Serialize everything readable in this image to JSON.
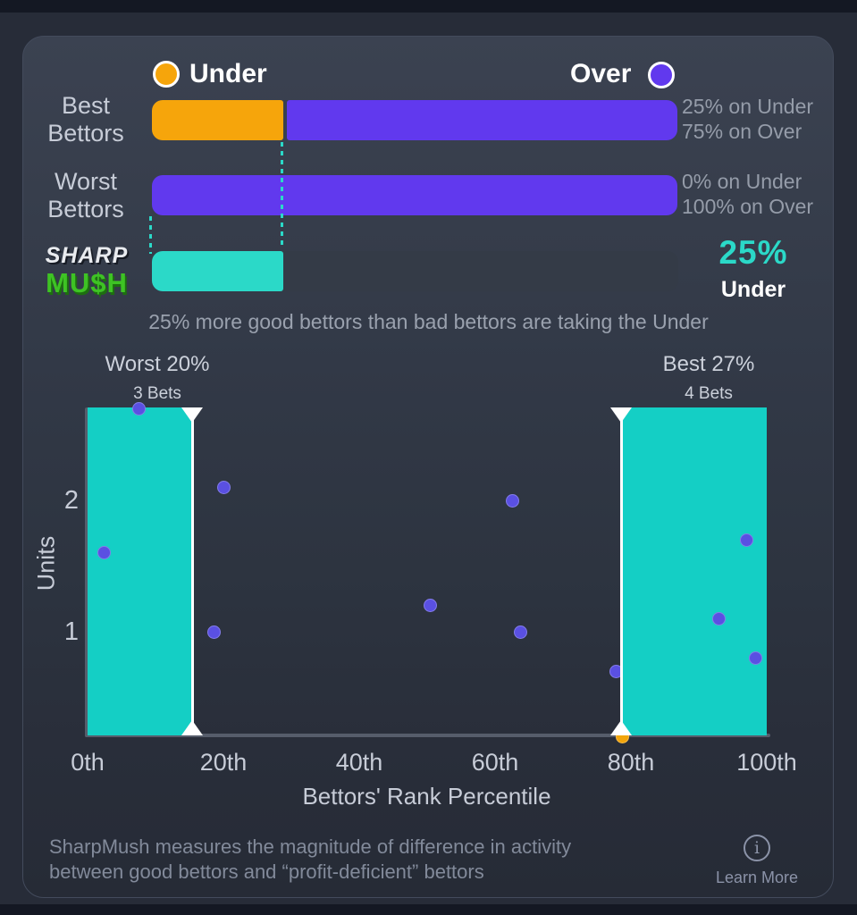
{
  "legend": {
    "under_label": "Under",
    "over_label": "Over"
  },
  "colors": {
    "under": "#f6a50b",
    "over": "#6139ee",
    "teal": "#2bd9c8",
    "band_teal": "#14cfc5",
    "dot_over": "#5a50e2",
    "dot_under": "#f2a50c"
  },
  "bar_rows": [
    {
      "label_line1": "Best",
      "label_line2": "Bettors",
      "under_pct": 25,
      "over_pct": 75,
      "side_line1": "25% on Under",
      "side_line2": "75% on Over"
    },
    {
      "label_line1": "Worst",
      "label_line2": "Bettors",
      "under_pct": 0,
      "over_pct": 100,
      "side_line1": "0% on Under",
      "side_line2": "100% on Over"
    }
  ],
  "mush_row": {
    "logo_line1": "SHARP",
    "logo_line2": "MU$H",
    "pct": 25,
    "value": "25%",
    "value_sub": "Under"
  },
  "caption": "25% more good bettors than bad bettors are taking the Under",
  "chart_data": {
    "type": "scatter",
    "xlabel": "Bettors' Rank Percentile",
    "ylabel": "Units",
    "x_ticks": [
      "0th",
      "20th",
      "40th",
      "60th",
      "80th",
      "100th"
    ],
    "y_ticks": [
      1,
      2
    ],
    "xlim": [
      0,
      100
    ],
    "ylim": [
      0,
      2.7
    ],
    "grid": false,
    "legend_position": "none",
    "bands": [
      {
        "label": "Worst 20%",
        "sublabel": "3 Bets",
        "start_pct": 0,
        "end_pct": 15.4
      },
      {
        "label": "Best 27%",
        "sublabel": "4 Bets",
        "start_pct": 78.6,
        "end_pct": 100
      }
    ],
    "series": [
      {
        "name": "Over bets",
        "color": "#5a50e2",
        "points": [
          [
            7.5,
            2.7
          ],
          [
            20.1,
            2.1
          ],
          [
            2.4,
            1.6
          ],
          [
            18.6,
            1.0
          ],
          [
            50.5,
            1.2
          ],
          [
            62.6,
            2.0
          ],
          [
            63.8,
            1.0
          ],
          [
            77.8,
            0.7
          ],
          [
            93.0,
            1.1
          ],
          [
            97.1,
            1.7
          ],
          [
            98.4,
            0.8
          ]
        ]
      },
      {
        "name": "Under bets",
        "color": "#f2a50c",
        "points": [
          [
            78.8,
            0.2
          ]
        ]
      }
    ]
  },
  "footer": {
    "line1": "SharpMush measures the magnitude of difference in activity",
    "line2": "between good bettors and “profit-deficient” bettors",
    "learn_more": "Learn More"
  }
}
